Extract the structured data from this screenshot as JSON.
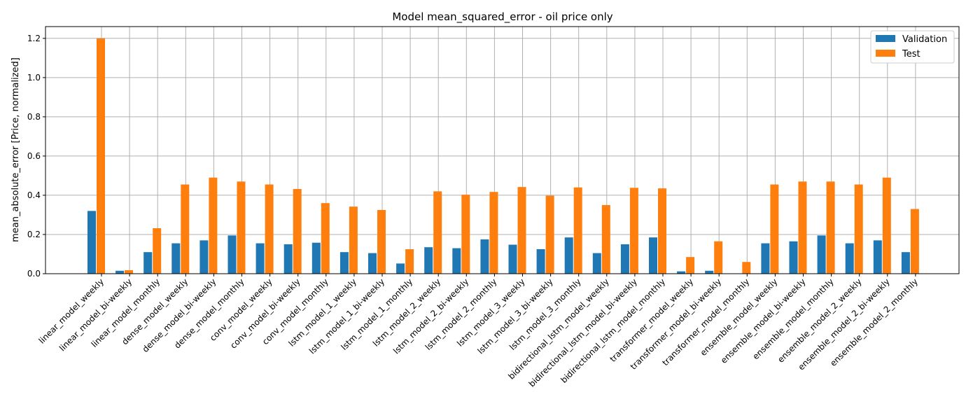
{
  "chart_data": {
    "type": "bar",
    "title": "Model mean_squared_error - oil price only",
    "xlabel": "",
    "ylabel": "mean_absolute_error [Price, normalized]",
    "ylim": [
      0,
      1.26
    ],
    "yticks": [
      0.0,
      0.2,
      0.4,
      0.6,
      0.8,
      1.0,
      1.2
    ],
    "ytick_labels": [
      "0.0",
      "0.2",
      "0.4",
      "0.6",
      "0.8",
      "1.0",
      "1.2"
    ],
    "grid": true,
    "legend_position": "top-right",
    "categories": [
      "linear_model_weekly",
      "linear_model_bi-weekly",
      "linear_model_monthly",
      "dense_model_weekly",
      "dense_model_bi-weekly",
      "dense_model_monthly",
      "conv_model_weekly",
      "conv_model_bi-weekly",
      "conv_model_monthly",
      "lstm_model_1_weekly",
      "lstm_model_1_bi-weekly",
      "lstm_model_1_monthly",
      "lstm_model_2_weekly",
      "lstm_model_2_bi-weekly",
      "lstm_model_2_monthly",
      "lstm_model_3_weekly",
      "lstm_model_3_bi-weekly",
      "lstm_model_3_monthly",
      "bidirectional_lstm_model_weekly",
      "bidirectional_lstm_model_bi-weekly",
      "bidirectional_lstm_model_monthly",
      "transformer_model_weekly",
      "transformer_model_bi-weekly",
      "transformer_model_monthly",
      "ensemble_model_weekly",
      "ensemble_model_bi-weekly",
      "ensemble_model_monthly",
      "ensemble_model_2_weekly",
      "ensemble_model_2_bi-weekly",
      "ensemble_model_2_monthly"
    ],
    "series": [
      {
        "name": "Validation",
        "color": "#1f77b4",
        "values": [
          0.32,
          0.015,
          0.11,
          0.155,
          0.17,
          0.195,
          0.155,
          0.15,
          0.158,
          0.11,
          0.105,
          0.052,
          0.135,
          0.13,
          0.175,
          0.148,
          0.125,
          0.185,
          0.105,
          0.15,
          0.185,
          0.012,
          0.015,
          0.0,
          0.155,
          0.165,
          0.195,
          0.155,
          0.17,
          0.11
        ]
      },
      {
        "name": "Test",
        "color": "#ff7f0e",
        "values": [
          1.2,
          0.018,
          0.232,
          0.455,
          0.49,
          0.47,
          0.455,
          0.432,
          0.36,
          0.342,
          0.325,
          0.125,
          0.42,
          0.403,
          0.417,
          0.442,
          0.398,
          0.44,
          0.35,
          0.438,
          0.435,
          0.085,
          0.165,
          0.06,
          0.455,
          0.47,
          0.47,
          0.455,
          0.49,
          0.33
        ]
      }
    ]
  }
}
